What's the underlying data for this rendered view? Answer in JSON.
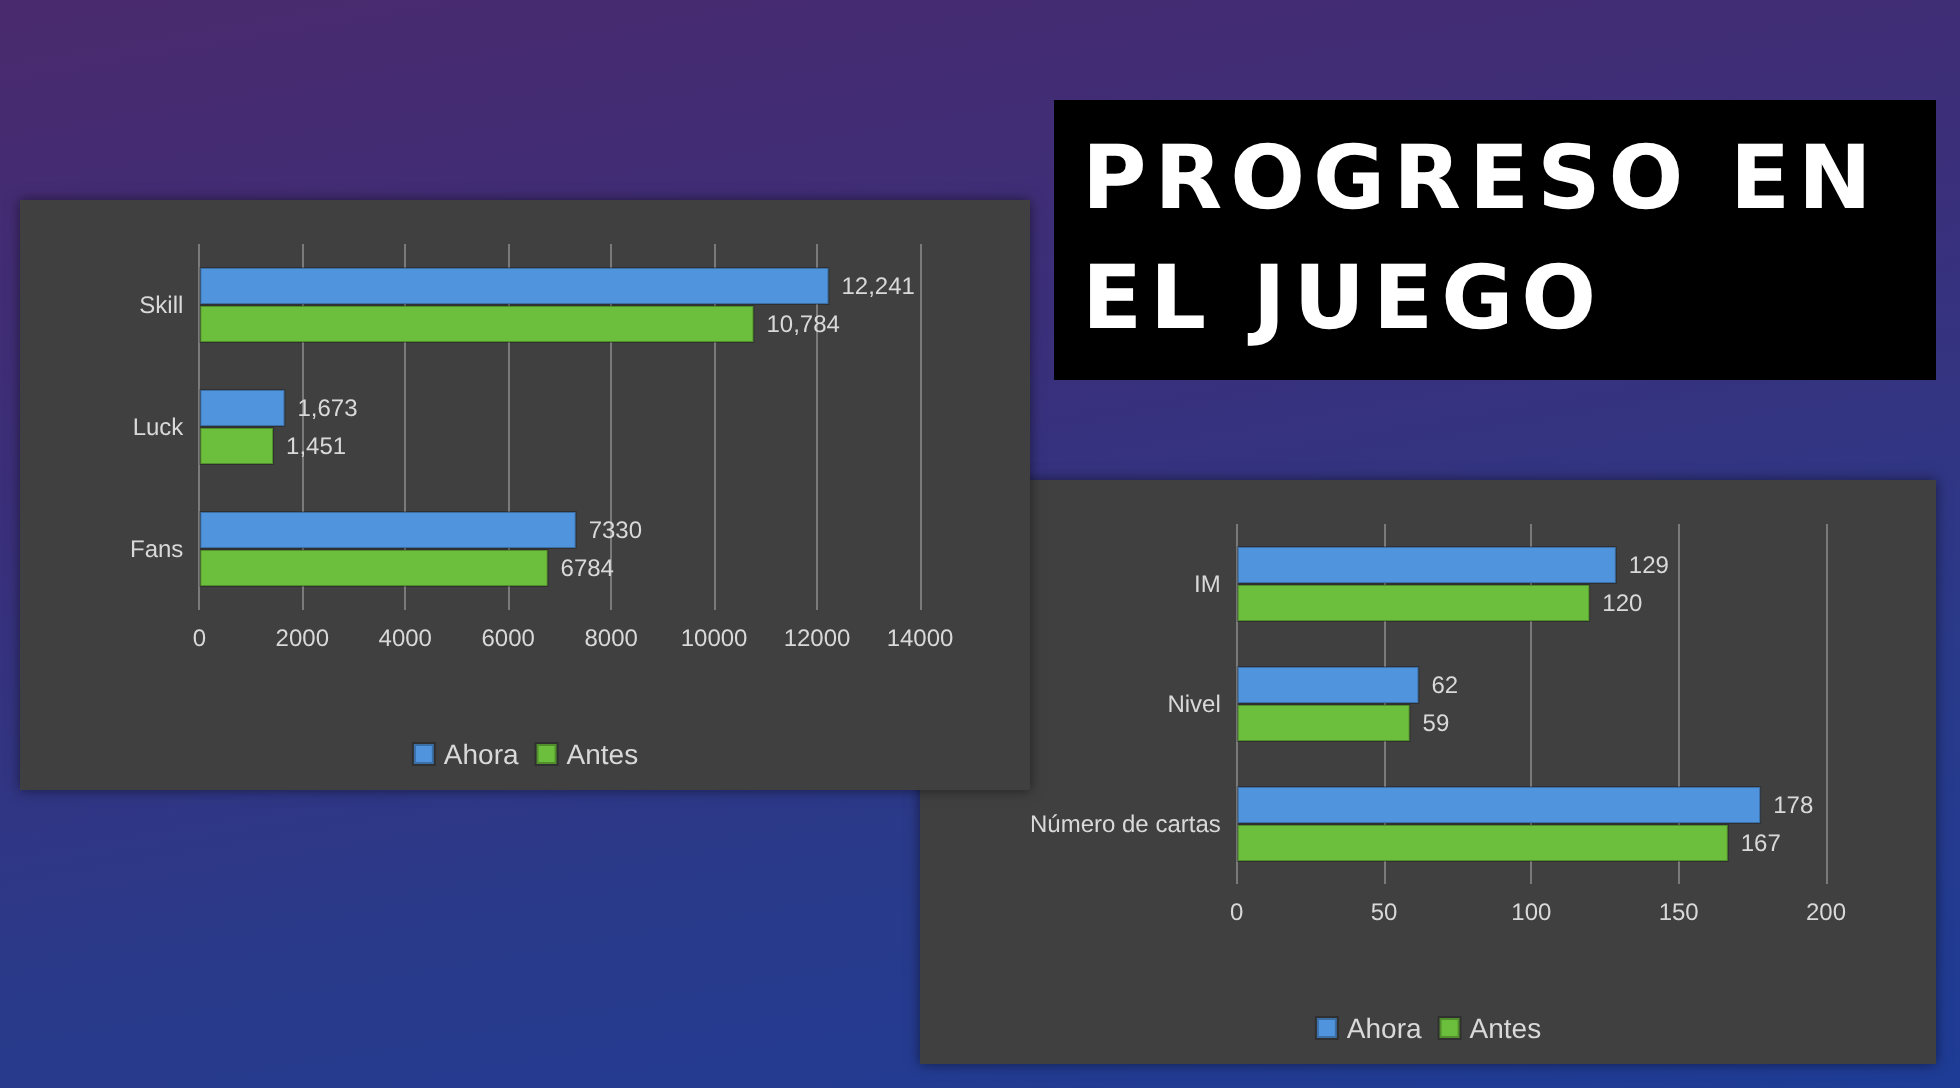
{
  "chart_data": [
    {
      "type": "bar",
      "orientation": "horizontal",
      "categories": [
        "Skill",
        "Luck",
        "Fans"
      ],
      "series": [
        {
          "name": "Ahora",
          "color": "#4f94dc",
          "values": [
            12241,
            1673,
            7330
          ],
          "value_labels": [
            "12,241",
            "1,673",
            "7330"
          ]
        },
        {
          "name": "Antes",
          "color": "#6cbf3c",
          "values": [
            10784,
            1451,
            6784
          ],
          "value_labels": [
            "10,784",
            "1,451",
            "6784"
          ]
        }
      ],
      "xlim": [
        0,
        14000
      ],
      "xticks": [
        0,
        2000,
        4000,
        6000,
        8000,
        10000,
        12000,
        14000
      ],
      "grid": "x",
      "legend": "bottom"
    },
    {
      "type": "other",
      "title": "PROGRESO EN EL JUEGO"
    },
    {
      "type": "bar",
      "orientation": "horizontal",
      "categories": [
        "IM",
        "Nivel",
        "Número de cartas"
      ],
      "series": [
        {
          "name": "Ahora",
          "color": "#4f94dc",
          "values": [
            129,
            62,
            178
          ]
        },
        {
          "name": "Antes",
          "color": "#6cbf3c",
          "values": [
            120,
            59,
            167
          ]
        }
      ],
      "xlim": [
        0,
        200
      ],
      "xticks": [
        0,
        50,
        100,
        150,
        200
      ],
      "grid": "x",
      "legend": "bottom",
      "data_labels": true
    }
  ]
}
